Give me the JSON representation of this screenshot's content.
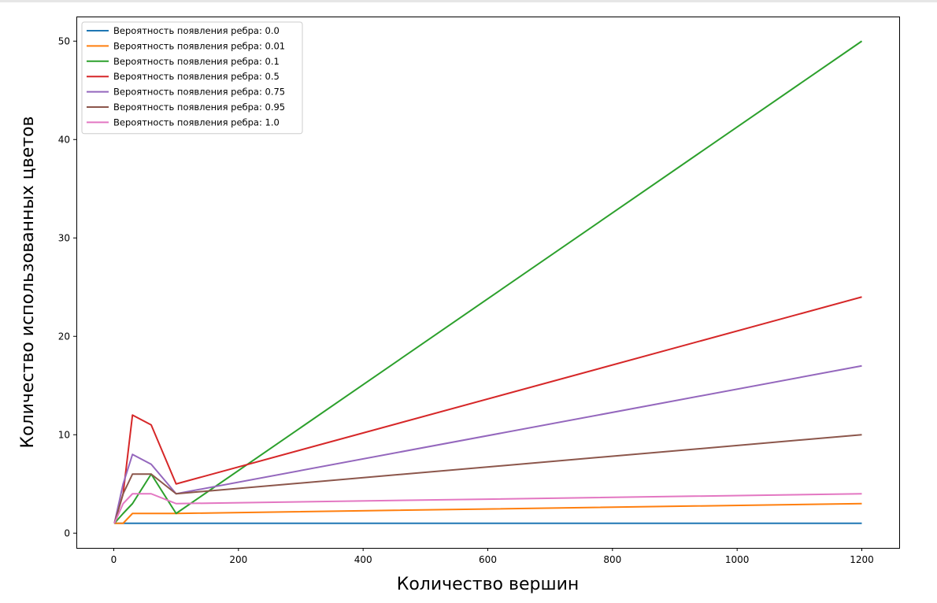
{
  "chart_data": {
    "type": "line",
    "xlabel": "Количество вершин",
    "ylabel": "Количество использованных цветов",
    "xlim": [
      -60,
      1260
    ],
    "ylim": [
      -1.5,
      52.5
    ],
    "xticks": [
      0,
      200,
      400,
      600,
      800,
      1000,
      1200
    ],
    "yticks": [
      0,
      10,
      20,
      30,
      40,
      50
    ],
    "grid": false,
    "legend_position": "top-left",
    "x": [
      1,
      15,
      30,
      60,
      100,
      1200
    ],
    "series": [
      {
        "name": "Вероятность появления ребра: 0.0",
        "color": "#1f77b4",
        "values": [
          1,
          1,
          1,
          1,
          1,
          1
        ]
      },
      {
        "name": "Вероятность появления ребра: 0.01",
        "color": "#ff7f0e",
        "values": [
          1,
          1,
          2,
          2,
          2,
          3
        ]
      },
      {
        "name": "Вероятность появления ребра: 0.1",
        "color": "#2ca02c",
        "values": [
          1,
          2,
          3,
          6,
          2,
          50
        ]
      },
      {
        "name": "Вероятность появления ребра: 0.5",
        "color": "#d62728",
        "values": [
          1,
          4,
          12,
          11,
          5,
          24
        ]
      },
      {
        "name": "Вероятность появления ребра: 0.75",
        "color": "#9467bd",
        "values": [
          1,
          5,
          8,
          7,
          4,
          17
        ]
      },
      {
        "name": "Вероятность появления ребра: 0.95",
        "color": "#8c564b",
        "values": [
          1,
          4,
          6,
          6,
          4,
          10
        ]
      },
      {
        "name": "Вероятность появления ребра: 1.0",
        "color": "#e377c2",
        "values": [
          1,
          3,
          4,
          4,
          3,
          4
        ]
      }
    ]
  }
}
